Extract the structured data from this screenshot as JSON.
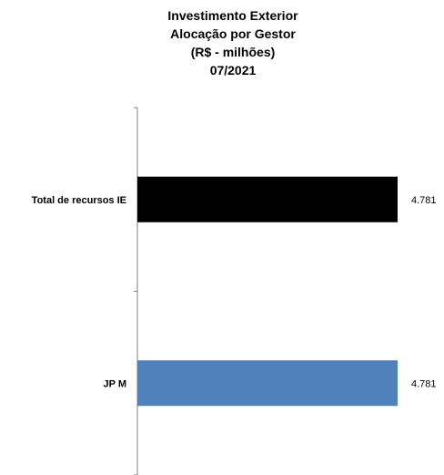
{
  "chart_data": {
    "type": "bar",
    "orientation": "horizontal",
    "title_lines": [
      "Investimento Exterior",
      "Alocação por Gestor",
      "(R$ - milhões)",
      "07/2021"
    ],
    "categories": [
      "Total de recursos IE",
      "JP M"
    ],
    "values": [
      4781,
      4781
    ],
    "value_labels": [
      "4.781",
      "4.781"
    ],
    "bar_colors": [
      "#000000",
      "#4f81bd"
    ],
    "xlim": [
      0,
      4781
    ],
    "grid": false,
    "legend": "none"
  }
}
